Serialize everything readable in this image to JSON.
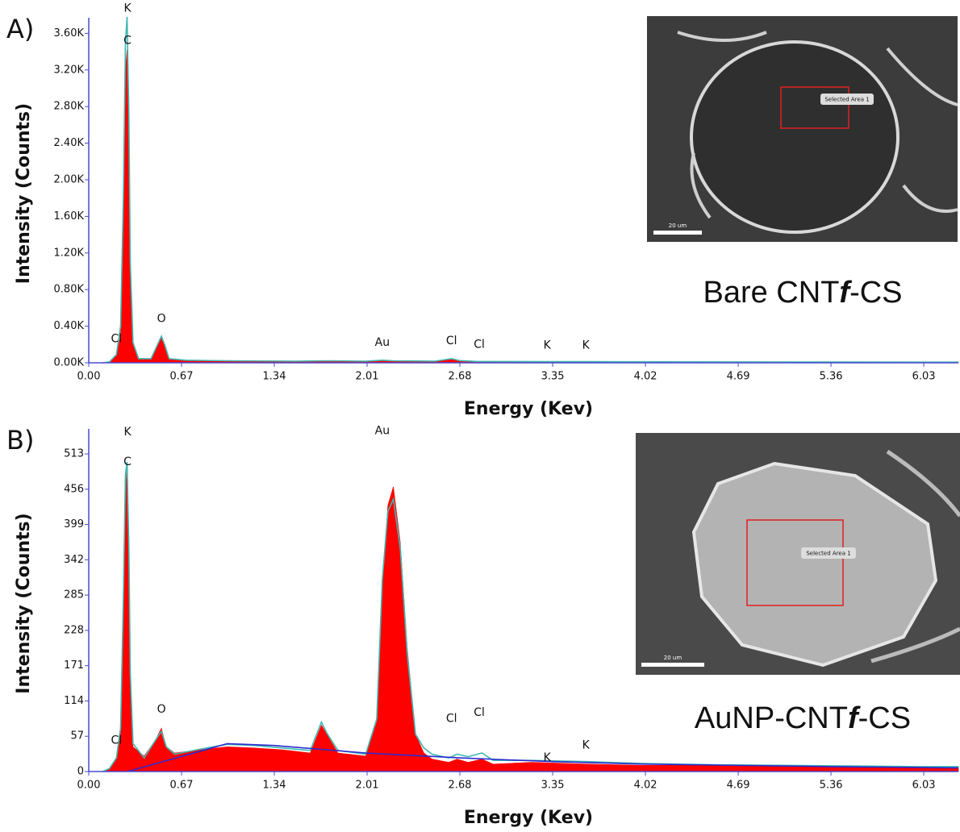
{
  "chart_data": [
    {
      "type": "area",
      "panel": "A)",
      "xlabel": "Energy (Kev)",
      "ylabel": "Intensity (Counts)",
      "sample": [
        "Bare CNT",
        "f",
        "-CS"
      ],
      "image_labels": {
        "region": "Selected Area 1",
        "scale": "20 um"
      },
      "xlim": [
        0,
        6.28
      ],
      "xticks": [
        {
          "value": 0,
          "label": "0.00"
        },
        0.67,
        1.34,
        2.01,
        2.68,
        3.35,
        4.02,
        4.69,
        5.36,
        6.03
      ],
      "ylim": [
        0,
        3700
      ],
      "yticks": [
        {
          "value": 0,
          "label": "0.00K"
        },
        {
          "value": 400,
          "label": "0.40K"
        },
        {
          "value": 800,
          "label": "0.80K"
        },
        {
          "value": 1200,
          "label": "1.20K"
        },
        {
          "value": 1600,
          "label": "1.60K"
        },
        {
          "value": 2000,
          "label": "2.00K"
        },
        {
          "value": 2400,
          "label": "2.40K"
        },
        {
          "value": 2800,
          "label": "2.80K"
        },
        {
          "value": 3200,
          "label": "3.20K"
        },
        {
          "value": 3600,
          "label": "3.60K"
        }
      ],
      "x": [
        0.1,
        0.15,
        0.2,
        0.23,
        0.25,
        0.265,
        0.277,
        0.29,
        0.3,
        0.32,
        0.36,
        0.45,
        0.5,
        0.525,
        0.55,
        0.58,
        0.7,
        1.0,
        1.5,
        1.74,
        2.0,
        2.12,
        2.2,
        2.5,
        2.62,
        2.68,
        2.8,
        3.3,
        3.6,
        4.5,
        5.5,
        6.28
      ],
      "series": [
        {
          "color": "#ff0000",
          "fill": true,
          "values": [
            0,
            10,
            80,
            300,
            1500,
            3200,
            3420,
            2500,
            1000,
            200,
            40,
            40,
            200,
            280,
            180,
            40,
            25,
            20,
            15,
            20,
            15,
            25,
            20,
            15,
            40,
            20,
            12,
            10,
            10,
            8,
            6,
            5
          ]
        },
        {
          "color": "#3fb8b0",
          "fill": false,
          "values": [
            0,
            10,
            90,
            400,
            1800,
            3500,
            3780,
            2700,
            1100,
            220,
            45,
            45,
            210,
            290,
            190,
            45,
            28,
            22,
            18,
            22,
            18,
            28,
            22,
            18,
            45,
            24,
            15,
            12,
            12,
            10,
            8,
            7
          ]
        }
      ],
      "peak_labels": [
        {
          "label": "K",
          "x": 0.28,
          "y": 3870
        },
        {
          "label": "C",
          "x": 0.28,
          "y": 3520
        },
        {
          "label": "Cl",
          "x": 0.2,
          "y": 260
        },
        {
          "label": "O",
          "x": 0.525,
          "y": 480
        },
        {
          "label": "Au",
          "x": 2.12,
          "y": 220
        },
        {
          "label": "Cl",
          "x": 2.62,
          "y": 240
        },
        {
          "label": "Cl",
          "x": 2.82,
          "y": 200
        },
        {
          "label": "K",
          "x": 3.31,
          "y": 190
        },
        {
          "label": "K",
          "x": 3.59,
          "y": 190
        }
      ]
    },
    {
      "type": "area",
      "panel": "B)",
      "xlabel": "Energy (Kev)",
      "ylabel": "Intensity (Counts)",
      "sample": [
        "AuNP-CNT",
        "f",
        "-CS"
      ],
      "image_labels": {
        "region": "Selected Area 1",
        "scale": "20 um"
      },
      "xlim": [
        0,
        6.28
      ],
      "xticks": [
        {
          "value": 0,
          "label": "0.00"
        },
        0.67,
        1.34,
        2.01,
        2.68,
        3.35,
        4.02,
        4.69,
        5.36,
        6.03
      ],
      "ylim": [
        0,
        543
      ],
      "yticks": [
        0,
        57,
        114,
        171,
        228,
        285,
        342,
        399,
        456,
        513
      ],
      "x": [
        0.1,
        0.15,
        0.2,
        0.23,
        0.25,
        0.265,
        0.277,
        0.29,
        0.3,
        0.32,
        0.4,
        0.48,
        0.525,
        0.56,
        0.62,
        0.8,
        1.0,
        1.2,
        1.4,
        1.6,
        1.68,
        1.72,
        1.8,
        2.0,
        2.08,
        2.12,
        2.16,
        2.2,
        2.25,
        2.3,
        2.36,
        2.42,
        2.48,
        2.6,
        2.66,
        2.74,
        2.84,
        2.92,
        3.2,
        3.6,
        4.0,
        4.5,
        5.0,
        5.5,
        6.0,
        6.28
      ],
      "series": [
        {
          "color": "#ff0000",
          "fill": true,
          "values": [
            0,
            5,
            20,
            60,
            250,
            460,
            490,
            350,
            150,
            40,
            25,
            50,
            70,
            40,
            30,
            35,
            40,
            38,
            35,
            30,
            75,
            60,
            30,
            25,
            80,
            300,
            430,
            460,
            370,
            200,
            60,
            30,
            20,
            15,
            20,
            15,
            20,
            12,
            15,
            12,
            10,
            10,
            8,
            8,
            7,
            7
          ]
        },
        {
          "color": "#3fb8b0",
          "fill": false,
          "values": [
            0,
            5,
            22,
            70,
            280,
            480,
            500,
            360,
            160,
            45,
            22,
            50,
            65,
            40,
            28,
            36,
            44,
            42,
            38,
            34,
            80,
            62,
            34,
            28,
            85,
            310,
            420,
            440,
            360,
            190,
            60,
            38,
            28,
            22,
            28,
            24,
            30,
            18,
            18,
            16,
            13,
            11,
            10,
            9,
            8,
            8
          ]
        },
        {
          "color": "#2b2bd0",
          "fill": false,
          "x": [
            0.28,
            0.6,
            1.0,
            1.34,
            2.0,
            2.68,
            3.35,
            4.02,
            5.36,
            6.28
          ],
          "values": [
            0,
            20,
            45,
            42,
            30,
            22,
            16,
            12,
            8,
            6
          ]
        }
      ],
      "peak_labels": [
        {
          "label": "K",
          "x": 0.28,
          "y": 548
        },
        {
          "label": "C",
          "x": 0.28,
          "y": 500
        },
        {
          "label": "Cl",
          "x": 0.2,
          "y": 50
        },
        {
          "label": "O",
          "x": 0.525,
          "y": 100
        },
        {
          "label": "Au",
          "x": 2.12,
          "y": 550
        },
        {
          "label": "Cl",
          "x": 2.62,
          "y": 85
        },
        {
          "label": "Cl",
          "x": 2.82,
          "y": 95
        },
        {
          "label": "K",
          "x": 3.31,
          "y": 22
        },
        {
          "label": "K",
          "x": 3.59,
          "y": 42
        }
      ]
    }
  ]
}
